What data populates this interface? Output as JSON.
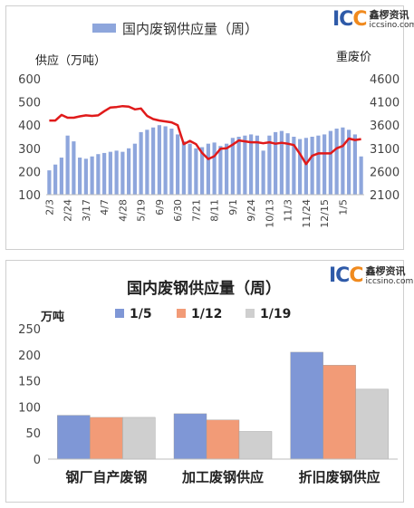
{
  "chart_data": [
    {
      "type": "bar",
      "title": "国内废钢供应量（周）",
      "legend": [
        "国内废钢供应量（周）"
      ],
      "ylabel_left": "供应（万吨）",
      "ylabel_right": "重废价",
      "ylim_left": [
        100,
        600
      ],
      "yticks_left": [
        100,
        200,
        300,
        400,
        500,
        600
      ],
      "ylim_right": [
        2100,
        4600
      ],
      "yticks_right": [
        2100,
        2600,
        3100,
        3600,
        4100,
        4600
      ],
      "xtick_labels": [
        "2/3",
        "2/24",
        "3/17",
        "4/7",
        "4/28",
        "5/19",
        "6/9",
        "6/30",
        "7/21",
        "8/11",
        "9/1",
        "9/24",
        "10/13",
        "11/3",
        "11/24",
        "12/15",
        "1/5"
      ],
      "xtick_every": 3,
      "grid": false,
      "colors": {
        "bars": "#8ea6dc",
        "line": "#e01a1a"
      },
      "series": [
        {
          "type": "bar",
          "values": [
            205,
            230,
            260,
            355,
            330,
            260,
            255,
            265,
            275,
            280,
            285,
            290,
            285,
            300,
            320,
            370,
            380,
            390,
            400,
            395,
            385,
            360,
            330,
            320,
            300,
            305,
            320,
            325,
            310,
            320,
            345,
            350,
            355,
            360,
            355,
            290,
            355,
            370,
            375,
            365,
            350,
            340,
            345,
            350,
            355,
            360,
            375,
            385,
            390,
            380,
            360,
            265
          ]
        },
        {
          "type": "line",
          "axis": "right",
          "values": [
            3700,
            3700,
            3820,
            3760,
            3760,
            3790,
            3810,
            3800,
            3810,
            3900,
            3980,
            3990,
            4010,
            4000,
            3940,
            3960,
            3800,
            3730,
            3700,
            3680,
            3660,
            3600,
            3190,
            3260,
            3190,
            3000,
            2870,
            2930,
            3090,
            3100,
            3180,
            3270,
            3250,
            3230,
            3230,
            3210,
            3230,
            3200,
            3220,
            3200,
            3170,
            2980,
            2760,
            2940,
            2990,
            2990,
            2990,
            3100,
            3150,
            3310,
            3280,
            3300
          ]
        }
      ]
    },
    {
      "type": "bar",
      "title": "国内废钢供应量（周）",
      "ylabel": "万吨",
      "ylim": [
        0,
        250
      ],
      "yticks": [
        0,
        50,
        100,
        150,
        200,
        250
      ],
      "categories": [
        "钢厂自产废钢",
        "加工废钢供应",
        "折旧废钢供应"
      ],
      "legend_position": "top",
      "grid": false,
      "series": [
        {
          "name": "1/5",
          "color": "#7f97d6",
          "values": [
            84,
            87,
            205
          ]
        },
        {
          "name": "1/12",
          "color": "#f29b77",
          "values": [
            80,
            75,
            180
          ]
        },
        {
          "name": "1/19",
          "color": "#cfcfcf",
          "values": [
            80,
            53,
            134
          ]
        }
      ]
    }
  ],
  "logo": {
    "mark_a": "IC",
    "mark_b": "C",
    "cn": "鑫椤资讯",
    "url": "iccsino.com"
  }
}
